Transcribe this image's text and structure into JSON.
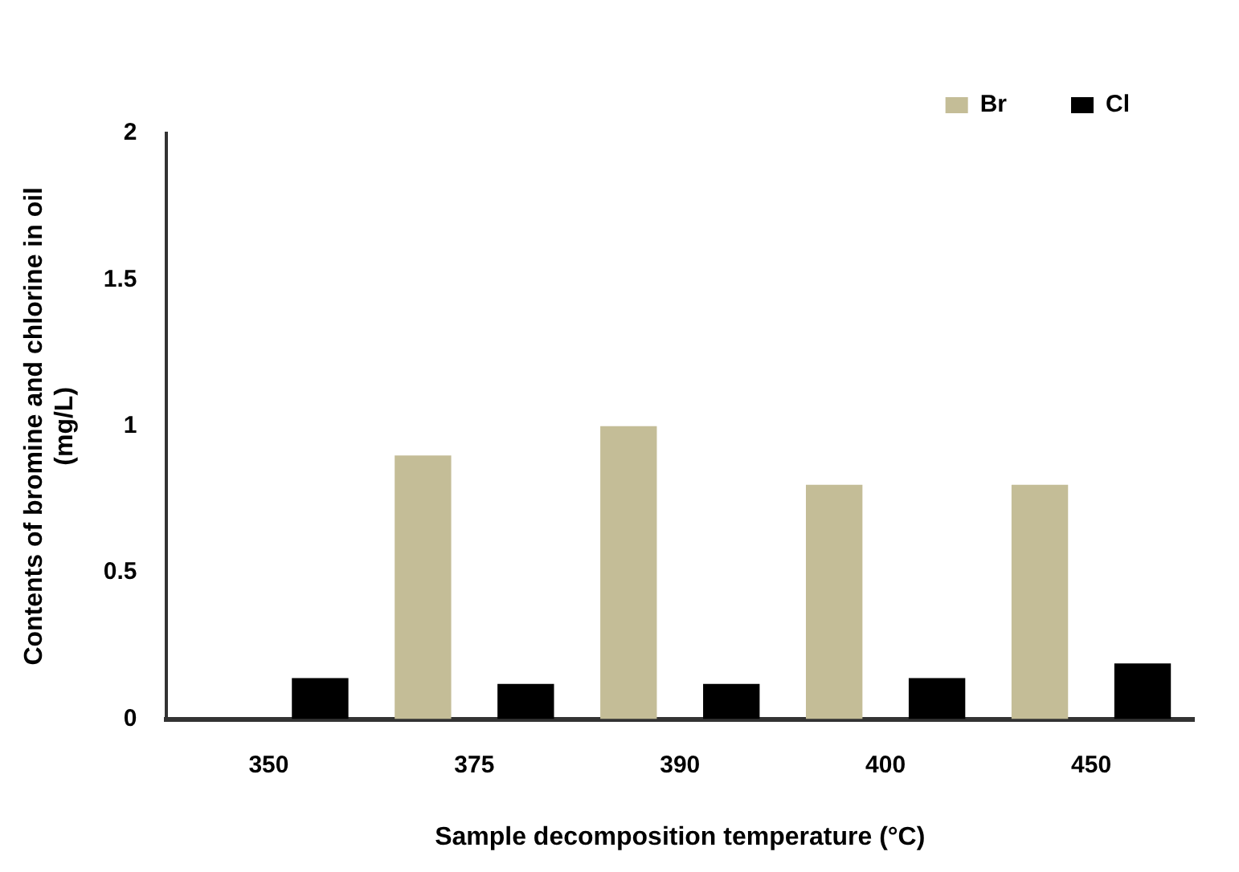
{
  "chart_data": {
    "type": "bar",
    "xlabel": "Sample decomposition temperature (°C)",
    "ylabel": "Contents of bromine and chlorine in oil (mg/L)",
    "categories": [
      "350",
      "375",
      "390",
      "400",
      "450"
    ],
    "series": [
      {
        "name": "Br",
        "color": "#c4bd97",
        "values": [
          0,
          0.9,
          1.0,
          0.8,
          0.8
        ]
      },
      {
        "name": "Cl",
        "color": "#000000",
        "values": [
          0.14,
          0.12,
          0.12,
          0.14,
          0.19
        ]
      }
    ],
    "ylim": [
      0,
      2
    ],
    "yticks": [
      0,
      0.5,
      1,
      1.5,
      2
    ],
    "grid": false,
    "legend": "top right"
  }
}
